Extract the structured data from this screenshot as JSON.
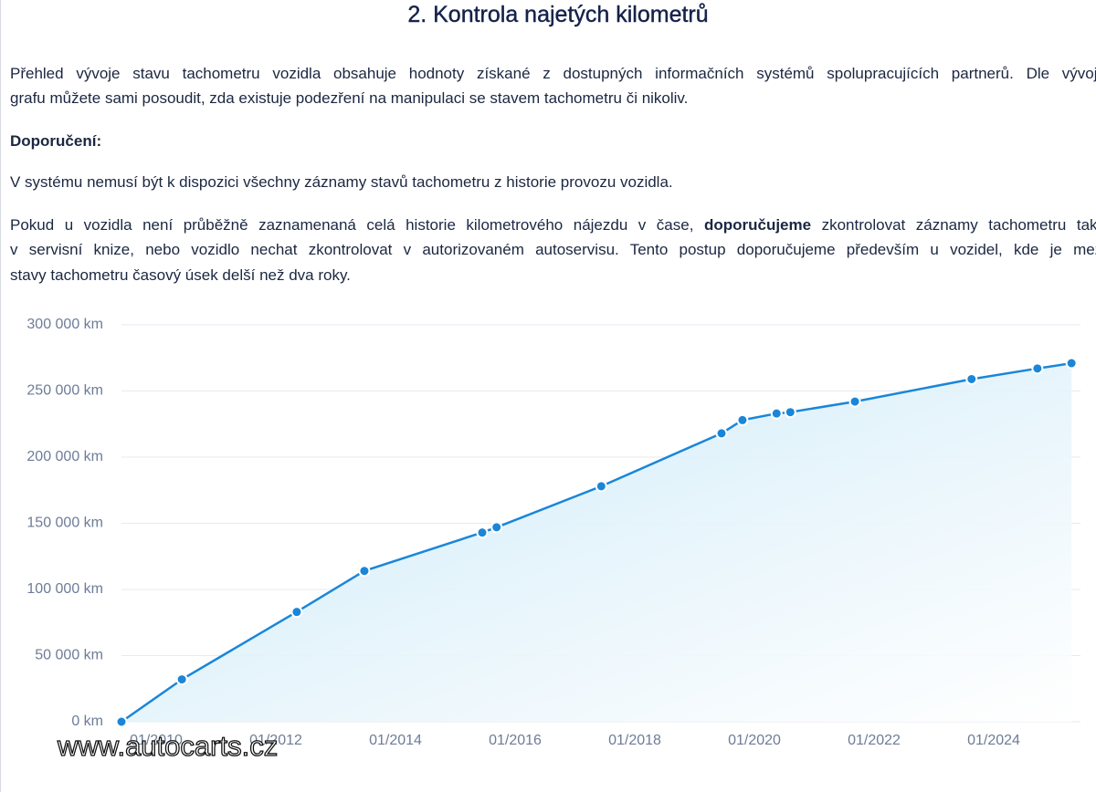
{
  "document": {
    "title": "2. Kontrola najetých kilometrů",
    "intro_lines": [
      "Přehled vývoje stavu tachometru vozidla obsahuje hodnoty získané z dostupných informačních systémů spolupracujících partnerů. Dle vývoje",
      "grafu můžete sami posoudit, zda existuje podezření na manipulaci se stavem tachometru či nikoliv."
    ],
    "recommendation_heading": "Doporučení:",
    "note": "V systému nemusí být k dispozici všechny záznamy stavů tachometru z historie provozu vozidla.",
    "advice_line1_start": "Pokud u vozidla není průběžně zaznamenaná celá historie kilometrového nájezdu v čase,",
    "advice_line1_bold": "doporučujeme",
    "advice_line1_end": "zkontrolovat záznamy tachometru také",
    "advice_lines": [
      "v servisní knize, nebo vozidlo nechat zkontrolovat v autorizovaném autoservisu. Tento postup doporučujeme především u vozidel, kde je mezi",
      "stavy tachometru časový úsek delší než dva roky."
    ],
    "watermark": "www.autocarts.cz"
  },
  "chart_data": {
    "type": "line",
    "x": [
      2009.42,
      2010.43,
      2012.35,
      2013.48,
      2015.45,
      2015.69,
      2017.44,
      2019.45,
      2019.8,
      2020.37,
      2020.6,
      2021.68,
      2023.63,
      2024.73,
      2025.3
    ],
    "series": [
      {
        "color": "#1a86d9",
        "values": [
          0,
          32000,
          83000,
          114000,
          143000,
          147000,
          178000,
          218000,
          228000,
          233000,
          234000,
          242000,
          259000,
          267000,
          271000
        ]
      }
    ],
    "xlim": [
      2009.42,
      2025.45
    ],
    "xticks": [
      {
        "value": 2010,
        "label": "01/2010"
      },
      {
        "value": 2012,
        "label": "01/2012"
      },
      {
        "value": 2014,
        "label": "01/2014"
      },
      {
        "value": 2016,
        "label": "01/2016"
      },
      {
        "value": 2018,
        "label": "01/2018"
      },
      {
        "value": 2020,
        "label": "01/2020"
      },
      {
        "value": 2022,
        "label": "01/2022"
      },
      {
        "value": 2024,
        "label": "01/2024"
      }
    ],
    "ylim": [
      0,
      300000
    ],
    "yticks": [
      {
        "value": 0,
        "label": "0 km"
      },
      {
        "value": 50000,
        "label": "50 000 km"
      },
      {
        "value": 100000,
        "label": "100 000 km"
      },
      {
        "value": 150000,
        "label": "150 000 km"
      },
      {
        "value": 200000,
        "label": "200 000 km"
      },
      {
        "value": 250000,
        "label": "250 000 km"
      },
      {
        "value": 300000,
        "label": "300 000 km"
      }
    ],
    "grid": true,
    "area_fill": true
  }
}
